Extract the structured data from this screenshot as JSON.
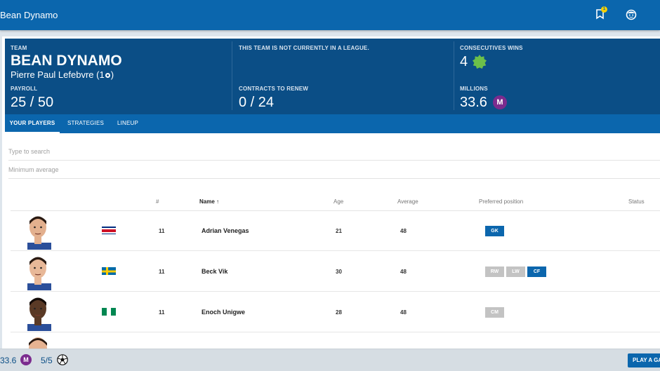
{
  "app": {
    "title": "Bean Dynamo",
    "notification_count": "1"
  },
  "header": {
    "team_label": "TEAM",
    "team_name": "BEAN DYNAMO",
    "owner": "Pierre Paul Lefebvre (1",
    "owner_suffix": ")",
    "league_label": "THIS TEAM IS NOT CURRENTLY IN A LEAGUE.",
    "wins_label": "CONSECUTIVES WINS",
    "wins_value": "4",
    "payroll_label": "PAYROLL",
    "payroll_value": "25 / 50",
    "contracts_label": "CONTRACTS TO RENEW",
    "contracts_value": "0 / 24",
    "millions_label": "MILLIONS",
    "millions_value": "33.6",
    "millions_badge": "M"
  },
  "tabs": [
    "YOUR PLAYERS",
    "STRATEGIES",
    "LINEUP"
  ],
  "search": {
    "placeholder": "Type to search"
  },
  "min_average": {
    "placeholder": "Minimum average"
  },
  "table": {
    "headers": {
      "num": "#",
      "name": "Name",
      "age": "Age",
      "average": "Average",
      "position": "Preferred position",
      "status": "Status"
    },
    "rows": [
      {
        "flag": "costa-rica",
        "num": "11",
        "name": "Adrian Venegas",
        "age": "21",
        "average": "48",
        "positions": [
          {
            "label": "GK",
            "primary": true
          }
        ],
        "skin": "#e3b08e",
        "hair": "#2a1a12"
      },
      {
        "flag": "sweden",
        "num": "11",
        "name": "Beck Vik",
        "age": "30",
        "average": "48",
        "positions": [
          {
            "label": "RW",
            "primary": false
          },
          {
            "label": "LW",
            "primary": false
          },
          {
            "label": "CF",
            "primary": true
          }
        ],
        "skin": "#e8b898",
        "hair": "#2a1a12"
      },
      {
        "flag": "nigeria",
        "num": "11",
        "name": "Enoch Unigwe",
        "age": "28",
        "average": "48",
        "positions": [
          {
            "label": "CM",
            "primary": false
          }
        ],
        "skin": "#5a3a26",
        "hair": "#140c08"
      }
    ]
  },
  "bottom": {
    "millions": "33.6",
    "m_badge": "M",
    "games": "5/5",
    "play_button": "PLAY A GA"
  },
  "colors": {
    "primary": "#0b66ad",
    "dark": "#0b4e86",
    "purple": "#7b2b8e",
    "pos_primary": "#0b66ad",
    "pos_secondary": "#c3c3c3"
  }
}
